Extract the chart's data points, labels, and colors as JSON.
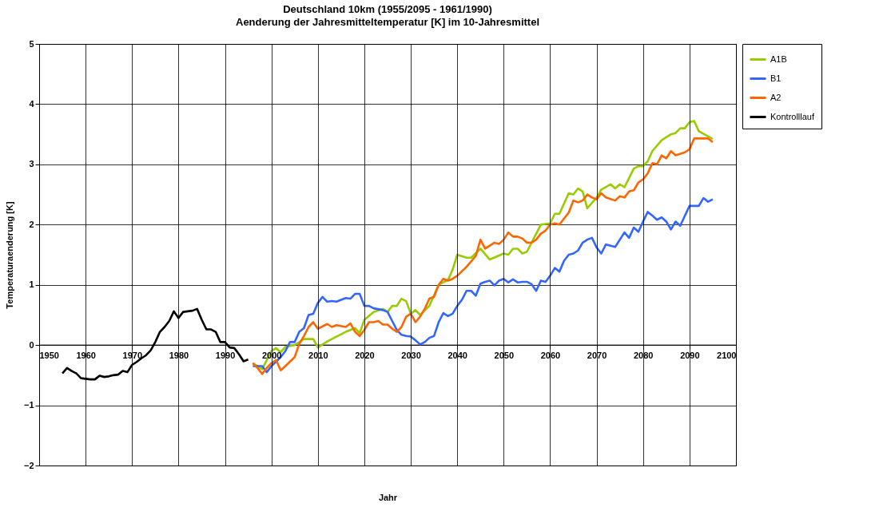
{
  "chart_data": {
    "type": "line",
    "title": "Deutschland 10km (1955/2095 - 1961/1990)",
    "subtitle": "Aenderung der Jahresmitteltemperatur  [K] im 10-Jahresmittel",
    "xlabel": "Jahr",
    "ylabel": "Temperaturaenderung [K]",
    "xlim": [
      1950,
      2100
    ],
    "xticks": [
      1950,
      1960,
      1970,
      1980,
      1990,
      2000,
      2010,
      2020,
      2030,
      2040,
      2050,
      2060,
      2070,
      2080,
      2090,
      2100
    ],
    "ylim": [
      -2,
      5
    ],
    "yticks": [
      -2,
      -1,
      0,
      1,
      2,
      3,
      4,
      5
    ],
    "grid": true,
    "legend": "right",
    "line_style": "solid",
    "marker": "none",
    "series": [
      {
        "name": "A1B",
        "color": "#99cc00",
        "x": [
          1996,
          1998,
          2000,
          2001,
          2002,
          2003,
          2005,
          2007,
          2009,
          2010,
          2012,
          2014,
          2016,
          2018,
          2019,
          2020,
          2022,
          2024,
          2025,
          2026,
          2027,
          2028,
          2029,
          2030,
          2031,
          2032,
          2034,
          2036,
          2038,
          2039,
          2040,
          2042,
          2043,
          2045,
          2047,
          2050,
          2051,
          2052,
          2053,
          2054,
          2055,
          2058,
          2060,
          2061,
          2062,
          2064,
          2065,
          2066,
          2067,
          2068,
          2070,
          2071,
          2073,
          2074,
          2075,
          2076,
          2078,
          2079,
          2080,
          2081,
          2082,
          2084,
          2086,
          2087,
          2088,
          2089,
          2090,
          2091,
          2092,
          2095
        ],
        "values": [
          -0.3,
          -0.4,
          -0.1,
          -0.05,
          -0.12,
          -0.03,
          0.0,
          0.1,
          0.1,
          -0.04,
          0.06,
          0.14,
          0.22,
          0.28,
          0.2,
          0.42,
          0.55,
          0.6,
          0.55,
          0.65,
          0.65,
          0.77,
          0.73,
          0.52,
          0.58,
          0.5,
          0.65,
          1.0,
          1.08,
          1.25,
          1.5,
          1.45,
          1.45,
          1.6,
          1.42,
          1.52,
          1.5,
          1.6,
          1.6,
          1.52,
          1.55,
          2.0,
          2.02,
          2.18,
          2.18,
          2.52,
          2.5,
          2.6,
          2.55,
          2.27,
          2.45,
          2.58,
          2.67,
          2.6,
          2.67,
          2.62,
          2.93,
          2.97,
          2.97,
          3.05,
          3.22,
          3.4,
          3.5,
          3.52,
          3.6,
          3.6,
          3.7,
          3.72,
          3.55,
          3.42
        ]
      },
      {
        "name": "B1",
        "color": "#3366ff",
        "x": [
          1996,
          1998,
          1999,
          2000,
          2002,
          2003,
          2004,
          2005,
          2006,
          2007,
          2008,
          2009,
          2010,
          2011,
          2012,
          2013,
          2014,
          2016,
          2017,
          2018,
          2019,
          2020,
          2021,
          2022,
          2024,
          2025,
          2026,
          2027,
          2028,
          2029,
          2030,
          2031,
          2032,
          2033,
          2034,
          2035,
          2036,
          2037,
          2038,
          2039,
          2040,
          2041,
          2042,
          2043,
          2044,
          2045,
          2046,
          2047,
          2048,
          2049,
          2050,
          2051,
          2052,
          2053,
          2054,
          2055,
          2056,
          2057,
          2058,
          2059,
          2060,
          2061,
          2062,
          2063,
          2064,
          2065,
          2066,
          2067,
          2068,
          2069,
          2070,
          2071,
          2072,
          2073,
          2074,
          2076,
          2077,
          2078,
          2079,
          2080,
          2081,
          2082,
          2083,
          2084,
          2085,
          2086,
          2087,
          2088,
          2090,
          2092,
          2093,
          2094,
          2095
        ],
        "values": [
          -0.35,
          -0.35,
          -0.45,
          -0.35,
          -0.2,
          -0.1,
          0.05,
          0.05,
          0.22,
          0.28,
          0.5,
          0.52,
          0.7,
          0.8,
          0.72,
          0.73,
          0.72,
          0.78,
          0.77,
          0.85,
          0.85,
          0.65,
          0.65,
          0.61,
          0.58,
          0.55,
          0.4,
          0.25,
          0.17,
          0.15,
          0.14,
          0.08,
          0.01,
          0.05,
          0.12,
          0.15,
          0.38,
          0.53,
          0.48,
          0.52,
          0.65,
          0.75,
          0.9,
          0.9,
          0.82,
          1.02,
          1.05,
          1.07,
          0.99,
          1.07,
          1.1,
          1.04,
          1.09,
          1.04,
          1.05,
          1.05,
          1.01,
          0.9,
          1.07,
          1.05,
          1.15,
          1.28,
          1.22,
          1.4,
          1.5,
          1.52,
          1.57,
          1.7,
          1.75,
          1.78,
          1.62,
          1.52,
          1.67,
          1.65,
          1.63,
          1.87,
          1.78,
          1.95,
          1.88,
          2.05,
          2.21,
          2.15,
          2.08,
          2.12,
          2.05,
          1.92,
          2.05,
          1.98,
          2.31,
          2.31,
          2.44,
          2.38,
          2.42
        ]
      },
      {
        "name": "A2",
        "color": "#ff6600",
        "x": [
          1996,
          1997,
          1998,
          1999,
          2000,
          2001,
          2002,
          2003,
          2005,
          2006,
          2007,
          2008,
          2009,
          2010,
          2012,
          2013,
          2014,
          2016,
          2017,
          2018,
          2019,
          2020,
          2021,
          2022,
          2023,
          2024,
          2025,
          2026,
          2027,
          2028,
          2029,
          2030,
          2031,
          2032,
          2033,
          2034,
          2035,
          2036,
          2037,
          2038,
          2039,
          2040,
          2042,
          2044,
          2045,
          2046,
          2047,
          2048,
          2049,
          2050,
          2051,
          2052,
          2053,
          2054,
          2055,
          2056,
          2057,
          2058,
          2059,
          2060,
          2061,
          2062,
          2063,
          2064,
          2065,
          2066,
          2067,
          2068,
          2069,
          2070,
          2071,
          2072,
          2074,
          2075,
          2076,
          2077,
          2078,
          2079,
          2080,
          2081,
          2082,
          2083,
          2084,
          2085,
          2086,
          2087,
          2089,
          2090,
          2091,
          2093,
          2094,
          2095
        ],
        "values": [
          -0.3,
          -0.38,
          -0.48,
          -0.38,
          -0.3,
          -0.25,
          -0.42,
          -0.35,
          -0.2,
          0.02,
          0.15,
          0.3,
          0.38,
          0.27,
          0.35,
          0.3,
          0.33,
          0.3,
          0.36,
          0.22,
          0.15,
          0.25,
          0.38,
          0.38,
          0.4,
          0.34,
          0.34,
          0.27,
          0.22,
          0.3,
          0.47,
          0.52,
          0.38,
          0.47,
          0.6,
          0.77,
          0.8,
          1.0,
          1.1,
          1.07,
          1.1,
          1.15,
          1.3,
          1.48,
          1.75,
          1.6,
          1.65,
          1.7,
          1.68,
          1.75,
          1.87,
          1.8,
          1.8,
          1.77,
          1.7,
          1.7,
          1.75,
          1.85,
          1.9,
          2.0,
          2.02,
          2.0,
          2.1,
          2.2,
          2.4,
          2.37,
          2.4,
          2.5,
          2.45,
          2.42,
          2.52,
          2.45,
          2.4,
          2.47,
          2.45,
          2.55,
          2.57,
          2.7,
          2.75,
          2.85,
          3.02,
          3.0,
          3.15,
          3.1,
          3.22,
          3.15,
          3.2,
          3.25,
          3.43,
          3.43,
          3.43,
          3.37
        ]
      },
      {
        "name": "Kontrolllauf",
        "color": "#000000",
        "x": [
          1955,
          1956,
          1957,
          1958,
          1959,
          1960,
          1961,
          1962,
          1963,
          1964,
          1965,
          1966,
          1967,
          1968,
          1969,
          1970,
          1971,
          1972,
          1973,
          1974,
          1975,
          1976,
          1977,
          1978,
          1979,
          1980,
          1981,
          1982,
          1983,
          1984,
          1985,
          1986,
          1987,
          1988,
          1989,
          1990,
          1991,
          1992,
          1993,
          1994,
          1995
        ],
        "values": [
          -0.47,
          -0.38,
          -0.43,
          -0.47,
          -0.55,
          -0.56,
          -0.57,
          -0.57,
          -0.51,
          -0.53,
          -0.52,
          -0.5,
          -0.49,
          -0.43,
          -0.45,
          -0.33,
          -0.28,
          -0.22,
          -0.17,
          -0.09,
          0.05,
          0.22,
          0.3,
          0.4,
          0.56,
          0.45,
          0.55,
          0.56,
          0.57,
          0.6,
          0.42,
          0.26,
          0.26,
          0.22,
          0.05,
          0.05,
          -0.04,
          -0.05,
          -0.15,
          -0.27,
          -0.24
        ]
      }
    ]
  }
}
